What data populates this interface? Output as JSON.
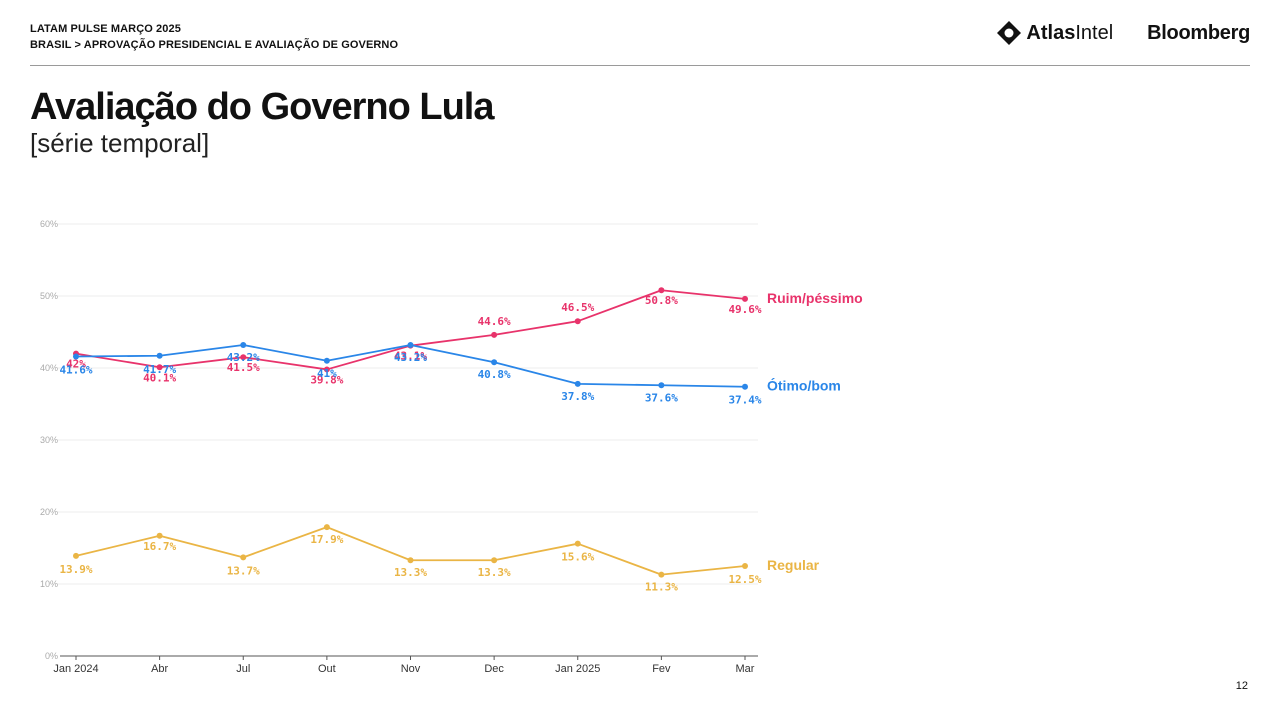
{
  "header": {
    "crumb_line1": "LATAM PULSE MARÇO 2025",
    "crumb_line2": "BRASIL > APROVAÇÃO PRESIDENCIAL E AVALIAÇÃO DE GOVERNO",
    "logo_atlas_a": "Atlas",
    "logo_atlas_b": "Intel",
    "logo_bloomberg": "Bloomberg"
  },
  "page_number": "12",
  "chart_data": {
    "type": "line",
    "title": "Avaliação do Governo Lula",
    "subtitle": "[série temporal]",
    "xlabel": "",
    "ylabel": "",
    "ylim": [
      0,
      60
    ],
    "yticks": [
      "0%",
      "10%",
      "20%",
      "30%",
      "40%",
      "50%",
      "60%"
    ],
    "categories": [
      "Jan 2024",
      "Abr",
      "Jul",
      "Out",
      "Nov",
      "Dec",
      "Jan 2025",
      "Fev",
      "Mar"
    ],
    "grid": true,
    "series": [
      {
        "name": "Ruim/péssimo",
        "color": "#e8336b",
        "values": [
          42,
          40.1,
          41.5,
          39.8,
          43.1,
          44.6,
          46.5,
          50.8,
          49.6
        ],
        "labels": [
          "42%",
          "40.1%",
          "41.5%",
          "39.8%",
          "43.1%",
          "44.6%",
          "46.5%",
          "50.8%",
          "49.6%"
        ]
      },
      {
        "name": "Ótimo/bom",
        "color": "#2a86e8",
        "values": [
          41.6,
          41.7,
          43.2,
          41,
          43.2,
          40.8,
          37.8,
          37.6,
          37.4
        ],
        "labels": [
          "41.6%",
          "41.7%",
          "43.2%",
          "41%",
          "43.2%",
          "40.8%",
          "37.8%",
          "37.6%",
          "37.4%"
        ]
      },
      {
        "name": "Regular",
        "color": "#eab545",
        "values": [
          13.9,
          16.7,
          13.7,
          17.9,
          13.3,
          13.3,
          15.6,
          11.3,
          12.5
        ],
        "labels": [
          "13.9%",
          "16.7%",
          "13.7%",
          "17.9%",
          "13.3%",
          "13.3%",
          "15.6%",
          "11.3%",
          "12.5%"
        ]
      }
    ]
  }
}
